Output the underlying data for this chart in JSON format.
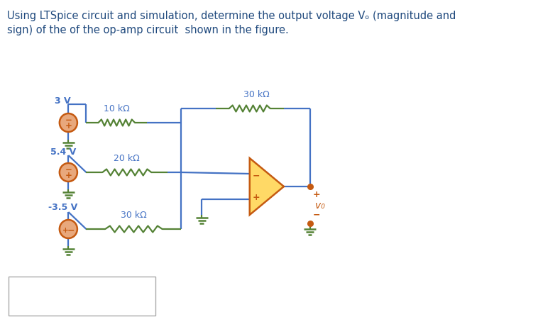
{
  "title_line1": "Using LTSpice circuit and simulation, determine the output voltage Vₒ (magnitude and",
  "title_line2": "sign) of the of the op-amp circuit  shown in the figure.",
  "bg_color": "#ffffff",
  "wire_color": "#4472c4",
  "component_color": "#c55a11",
  "ground_color": "#548235",
  "resistor_color": "#548235",
  "volt_label_color": "#4472c4",
  "opamp_fill": "#ffd966",
  "opamp_edge": "#c55a11",
  "terminal_color": "#c55a11",
  "v1": "3 V",
  "v2": "5.4 V",
  "v3": "-3.5 V",
  "r1": "10 kΩ",
  "r2": "20 kΩ",
  "r3": "30 kΩ",
  "r4": "30 kΩ",
  "vo_label": "v₀",
  "vs_fill": "#e8a87c",
  "vs_edge": "#c55a11"
}
